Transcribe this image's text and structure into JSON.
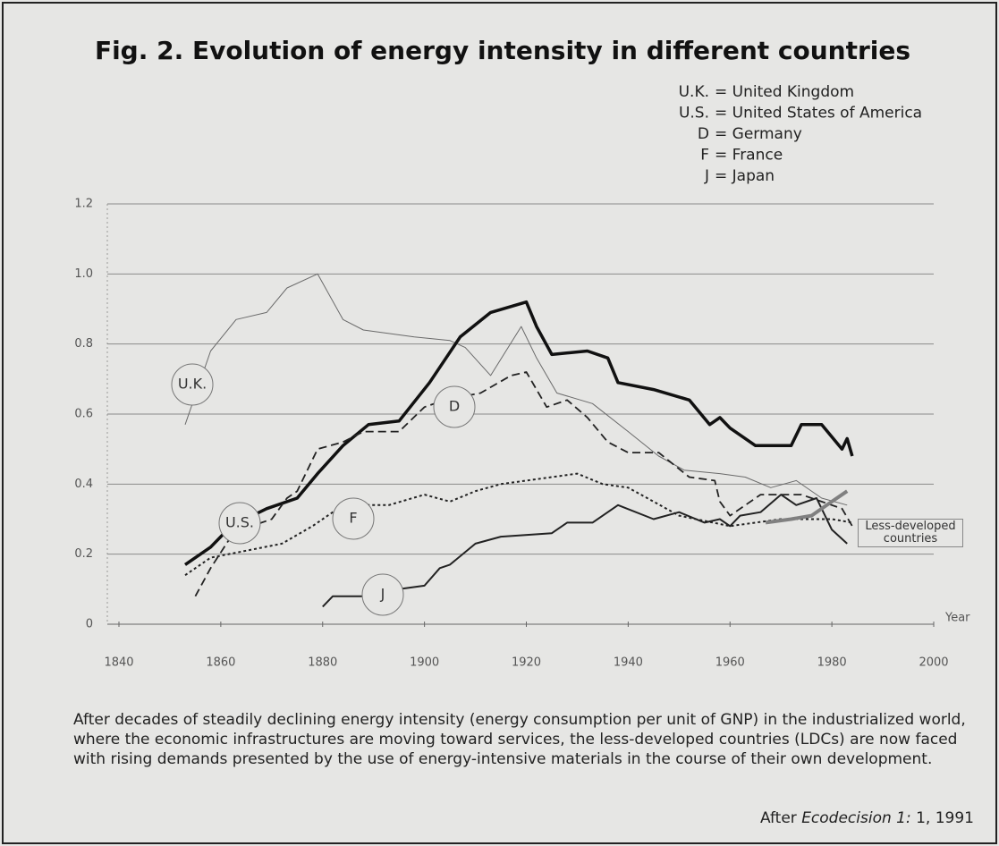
{
  "chart_data": {
    "type": "line",
    "title": "Fig. 2. Evolution of energy intensity in different countries",
    "legend": [
      {
        "abbr": "U.K.",
        "text": "= United Kingdom"
      },
      {
        "abbr": "U.S.",
        "text": "= United States of America"
      },
      {
        "abbr": "D",
        "text": "= Germany"
      },
      {
        "abbr": "F",
        "text": "= France"
      },
      {
        "abbr": "J",
        "text": "= Japan"
      }
    ],
    "x_label": "Year",
    "xlim": [
      1840,
      2000
    ],
    "xticks": [
      1840,
      1860,
      1880,
      1900,
      1920,
      1940,
      1960,
      1980,
      2000
    ],
    "ylim": [
      0,
      1.2
    ],
    "yticks": [
      0,
      0.2,
      0.4,
      0.6,
      0.8,
      {
        "value": 1,
        "label": "1.0"
      },
      1.2
    ],
    "grid": true,
    "series": [
      {
        "name": "U.K.",
        "color": "#6a6a6a",
        "x": [
          1853,
          1858,
          1863,
          1869,
          1873,
          1879,
          1884,
          1888,
          1898,
          1905,
          1908,
          1913,
          1919,
          1922,
          1926,
          1933,
          1940,
          1946,
          1951,
          1958,
          1963,
          1968,
          1973,
          1978,
          1983
        ],
        "values": [
          0.57,
          0.78,
          0.87,
          0.89,
          0.96,
          1.0,
          0.87,
          0.84,
          0.82,
          0.81,
          0.79,
          0.71,
          0.85,
          0.76,
          0.66,
          0.63,
          0.55,
          0.48,
          0.44,
          0.43,
          0.42,
          0.39,
          0.41,
          0.36,
          0.34
        ]
      },
      {
        "name": "U.S.",
        "color": "#111111",
        "x": [
          1853,
          1858,
          1862,
          1869,
          1875,
          1879,
          1884,
          1889,
          1895,
          1901,
          1907,
          1913,
          1920,
          1922,
          1925,
          1932,
          1936,
          1938,
          1945,
          1952,
          1956,
          1958,
          1960,
          1965,
          1972,
          1974,
          1978,
          1982,
          1983,
          1984
        ],
        "values": [
          0.17,
          0.22,
          0.28,
          0.33,
          0.36,
          0.43,
          0.51,
          0.57,
          0.58,
          0.69,
          0.82,
          0.89,
          0.92,
          0.85,
          0.77,
          0.78,
          0.76,
          0.69,
          0.67,
          0.64,
          0.57,
          0.59,
          0.56,
          0.51,
          0.51,
          0.57,
          0.57,
          0.5,
          0.53,
          0.48
        ]
      },
      {
        "name": "D",
        "color": "#222222",
        "x": [
          1855,
          1858,
          1862,
          1866,
          1870,
          1873,
          1875,
          1879,
          1884,
          1888,
          1895,
          1900,
          1904,
          1911,
          1917,
          1920,
          1924,
          1928,
          1932,
          1936,
          1940,
          1946,
          1952,
          1957,
          1958,
          1960,
          1966,
          1974,
          1978,
          1982,
          1984
        ],
        "values": [
          0.08,
          0.16,
          0.25,
          0.28,
          0.3,
          0.36,
          0.38,
          0.5,
          0.52,
          0.55,
          0.55,
          0.62,
          0.64,
          0.66,
          0.71,
          0.72,
          0.62,
          0.64,
          0.59,
          0.52,
          0.49,
          0.49,
          0.42,
          0.41,
          0.35,
          0.31,
          0.37,
          0.37,
          0.35,
          0.33,
          0.28
        ]
      },
      {
        "name": "F",
        "color": "#222222",
        "x": [
          1853,
          1858,
          1865,
          1872,
          1878,
          1882,
          1887,
          1893,
          1900,
          1905,
          1910,
          1915,
          1920,
          1930,
          1935,
          1940,
          1945,
          1950,
          1960,
          1965,
          1970,
          1975,
          1980,
          1984
        ],
        "values": [
          0.14,
          0.19,
          0.21,
          0.23,
          0.28,
          0.32,
          0.34,
          0.34,
          0.37,
          0.35,
          0.38,
          0.4,
          0.41,
          0.43,
          0.4,
          0.39,
          0.35,
          0.31,
          0.28,
          0.29,
          0.3,
          0.3,
          0.3,
          0.29
        ]
      },
      {
        "name": "J",
        "color": "#222222",
        "x": [
          1880,
          1882,
          1890,
          1895,
          1900,
          1903,
          1905,
          1910,
          1915,
          1925,
          1928,
          1933,
          1938,
          1945,
          1950,
          1955,
          1958,
          1960,
          1962,
          1966,
          1970,
          1973,
          1977,
          1980,
          1983
        ],
        "values": [
          0.05,
          0.08,
          0.08,
          0.1,
          0.11,
          0.16,
          0.17,
          0.23,
          0.25,
          0.26,
          0.29,
          0.29,
          0.34,
          0.3,
          0.32,
          0.29,
          0.3,
          0.28,
          0.31,
          0.32,
          0.37,
          0.34,
          0.36,
          0.27,
          0.23
        ]
      },
      {
        "name": "Less-developed countries",
        "color": "#808080",
        "x": [
          1967,
          1972,
          1976,
          1980,
          1983
        ],
        "values": [
          0.29,
          0.3,
          0.31,
          0.35,
          0.38
        ]
      }
    ],
    "caption": "After decades of steadily declining energy intensity (energy consumption per unit of GNP) in the industrialized world, where the economic infrastructures are moving toward services, the less-developed countries (LDCs) are now faced with rising demands presented by the use of energy-intensive materials in the course of their own development.",
    "source": {
      "prefix": "After",
      "italic": "Ecodecision 1:",
      "suffix": "1, 1991"
    }
  }
}
